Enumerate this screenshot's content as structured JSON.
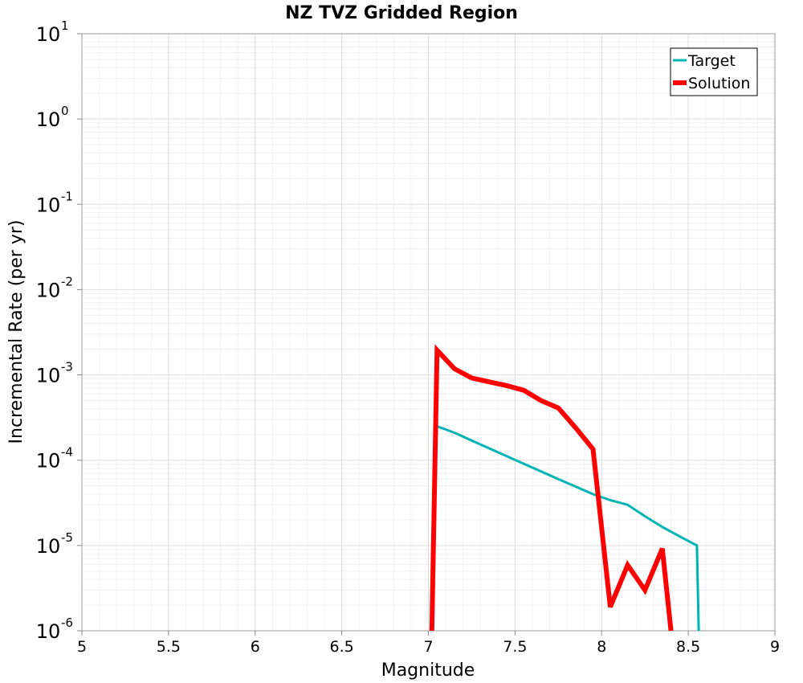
{
  "chart_data": {
    "type": "line",
    "title": "NZ TVZ Gridded Region",
    "xlabel": "Magnitude",
    "ylabel": "Incremental Rate (per yr)",
    "xlim": [
      5,
      9
    ],
    "ylim": [
      1e-06,
      10
    ],
    "yscale": "log",
    "grid": true,
    "legend_position": "top-right",
    "x_ticks": [
      "5",
      "5.5",
      "6",
      "6.5",
      "7",
      "7.5",
      "8",
      "8.5",
      "9"
    ],
    "y_ticks": [
      {
        "base": "10",
        "exp": "1"
      },
      {
        "base": "10",
        "exp": "0"
      },
      {
        "base": "10",
        "exp": "-1"
      },
      {
        "base": "10",
        "exp": "-2"
      },
      {
        "base": "10",
        "exp": "-3"
      },
      {
        "base": "10",
        "exp": "-4"
      },
      {
        "base": "10",
        "exp": "-5"
      },
      {
        "base": "10",
        "exp": "-6"
      }
    ],
    "series": [
      {
        "name": "Target",
        "color": "#00b4b4",
        "x": [
          7.05,
          7.15,
          7.25,
          7.35,
          7.45,
          7.55,
          7.65,
          7.75,
          7.85,
          7.95,
          8.05,
          8.15,
          8.25,
          8.35,
          8.45,
          8.55,
          8.56
        ],
        "y": [
          0.00025,
          0.00021,
          0.00017,
          0.000138,
          0.000112,
          9.1e-05,
          7.4e-05,
          6e-05,
          4.9e-05,
          4e-05,
          3.4e-05,
          3e-05,
          2.2e-05,
          1.65e-05,
          1.28e-05,
          1e-05,
          1e-06
        ]
      },
      {
        "name": "Solution",
        "color": "#ff0000",
        "x": [
          7.02,
          7.05,
          7.15,
          7.25,
          7.35,
          7.45,
          7.55,
          7.65,
          7.75,
          7.85,
          7.95,
          8.05,
          8.15,
          8.25,
          8.35,
          8.4
        ],
        "y": [
          1e-06,
          0.00195,
          0.00118,
          0.00092,
          0.00083,
          0.00075,
          0.00066,
          0.0005,
          0.00041,
          0.00024,
          0.000135,
          1.9e-06,
          5.9e-06,
          3e-06,
          9.2e-06,
          1e-06
        ]
      }
    ]
  }
}
